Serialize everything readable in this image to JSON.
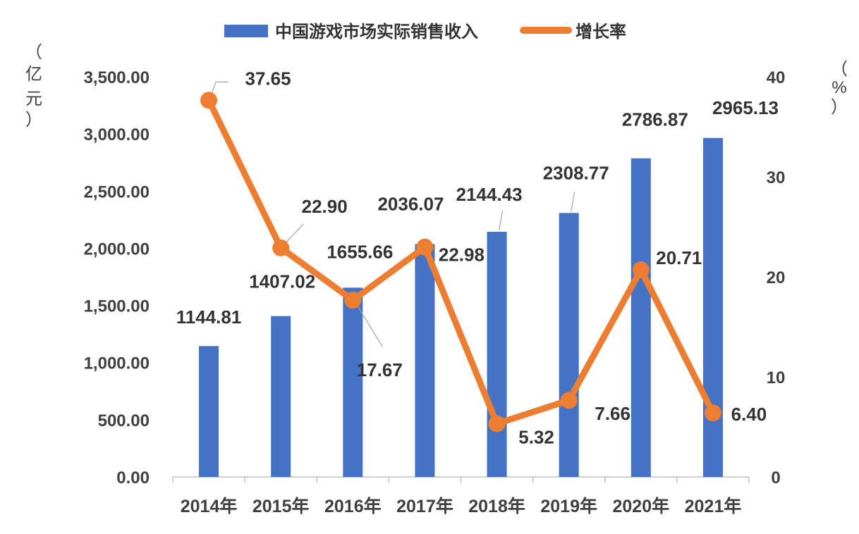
{
  "chart_data": {
    "type": "bar",
    "categories": [
      "2014年",
      "2015年",
      "2016年",
      "2017年",
      "2018年",
      "2019年",
      "2020年",
      "2021年"
    ],
    "series": [
      {
        "name": "中国游戏市场实际销售收入",
        "type": "bar",
        "axis": "left",
        "color": "#4472C4",
        "values": [
          1144.81,
          1407.02,
          1655.66,
          2036.07,
          2144.43,
          2308.77,
          2786.87,
          2965.13
        ],
        "labels": [
          "1144.81",
          "1407.02",
          "1655.66",
          "2036.07",
          "2144.43",
          "2308.77",
          "2786.87",
          "2965.13"
        ]
      },
      {
        "name": "增长率",
        "type": "line",
        "axis": "right",
        "color": "#ED7D31",
        "values": [
          37.65,
          22.9,
          17.67,
          22.98,
          5.32,
          7.66,
          20.71,
          6.4
        ],
        "labels": [
          "37.65",
          "22.90",
          "17.67",
          "22.98",
          "5.32",
          "7.66",
          "20.71",
          "6.40"
        ]
      }
    ],
    "y_left": {
      "unit_chars": [
        "（",
        "亿",
        "元",
        "）"
      ],
      "ylim": [
        0,
        3500
      ],
      "ticks": [
        0,
        500,
        1000,
        1500,
        2000,
        2500,
        3000,
        3500
      ],
      "tick_labels": [
        "0.00",
        "500.00",
        "1,000.00",
        "1,500.00",
        "2,000.00",
        "2,500.00",
        "3,000.00",
        "3,500.00"
      ]
    },
    "y_right": {
      "unit_chars": [
        "（",
        "%",
        "）"
      ],
      "ylim": [
        0,
        40
      ],
      "ticks": [
        0,
        10,
        20,
        30,
        40
      ],
      "tick_labels": [
        "0",
        "10",
        "20",
        "30",
        "40"
      ]
    },
    "legend": {
      "position": "top",
      "items": [
        "中国游戏市场实际销售收入",
        "增长率"
      ]
    },
    "grid": false
  }
}
